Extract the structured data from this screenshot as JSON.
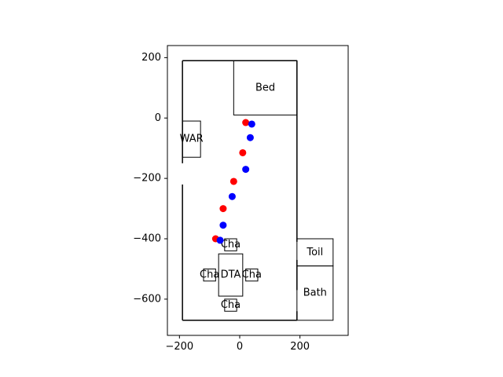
{
  "chart_data": {
    "type": "scatter",
    "xlim": [
      -240,
      360
    ],
    "ylim": [
      -720,
      240
    ],
    "xticks": [
      -200,
      0,
      200
    ],
    "yticks": [
      200,
      0,
      -200,
      -400,
      -600
    ],
    "grid": false,
    "walls": [
      {
        "x1": -190,
        "y1": 190,
        "x2": 190,
        "y2": 190
      },
      {
        "x1": -190,
        "y1": -670,
        "x2": 190,
        "y2": -670
      },
      {
        "x1": -190,
        "y1": 190,
        "x2": -190,
        "y2": -150
      },
      {
        "x1": -190,
        "y1": -220,
        "x2": -190,
        "y2": -670
      },
      {
        "x1": 190,
        "y1": 190,
        "x2": 190,
        "y2": -410
      },
      {
        "x1": 190,
        "y1": -470,
        "x2": 190,
        "y2": -570
      },
      {
        "x1": 190,
        "y1": -640,
        "x2": 190,
        "y2": -670
      }
    ],
    "furniture": [
      {
        "label": "Bed",
        "x0": -20,
        "x1": 190,
        "y0": 10,
        "y1": 190
      },
      {
        "label": "WAR",
        "x0": -190,
        "x1": -130,
        "y0": -130,
        "y1": -10
      },
      {
        "label": "Toil",
        "x0": 190,
        "x1": 310,
        "y0": -490,
        "y1": -400
      },
      {
        "label": "Bath",
        "x0": 190,
        "x1": 310,
        "y0": -670,
        "y1": -490
      },
      {
        "label": "DTA",
        "x0": -70,
        "x1": 10,
        "y0": -590,
        "y1": -450
      },
      {
        "label": "Cha",
        "x0": -50,
        "x1": -10,
        "y0": -440,
        "y1": -400
      },
      {
        "label": "Cha",
        "x0": -50,
        "x1": -10,
        "y0": -640,
        "y1": -600
      },
      {
        "label": "Cha",
        "x0": -120,
        "x1": -80,
        "y0": -540,
        "y1": -500
      },
      {
        "label": "Cha",
        "x0": 20,
        "x1": 60,
        "y0": -540,
        "y1": -500
      }
    ],
    "series": [
      {
        "color": "#ff0000",
        "points": [
          [
            20,
            -15
          ],
          [
            10,
            -115
          ],
          [
            -20,
            -210
          ],
          [
            -55,
            -300
          ],
          [
            -80,
            -400
          ]
        ]
      },
      {
        "color": "#0000ff",
        "points": [
          [
            40,
            -20
          ],
          [
            35,
            -65
          ],
          [
            20,
            -170
          ],
          [
            -25,
            -260
          ],
          [
            -55,
            -355
          ],
          [
            -65,
            -405
          ]
        ]
      }
    ]
  }
}
